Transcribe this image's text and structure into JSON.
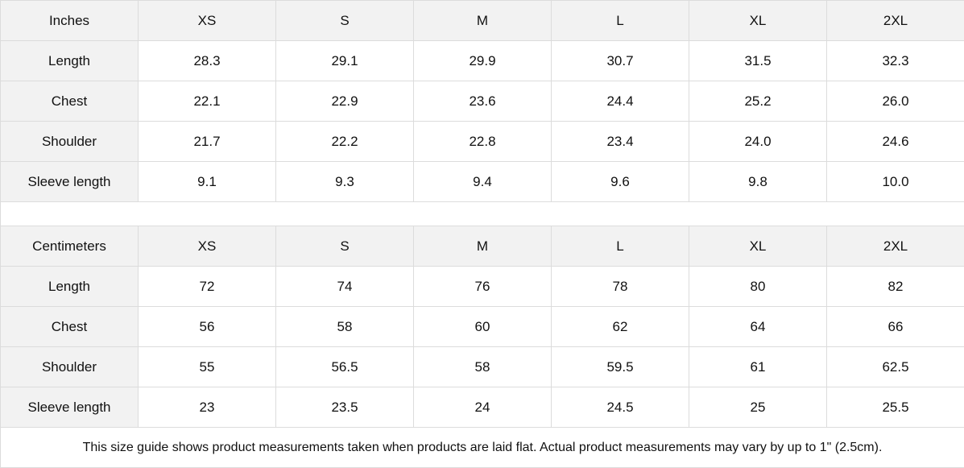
{
  "inches": {
    "unit": "Inches",
    "sizes": [
      "XS",
      "S",
      "M",
      "L",
      "XL",
      "2XL"
    ],
    "rows": [
      {
        "label": "Length",
        "values": [
          "28.3",
          "29.1",
          "29.9",
          "30.7",
          "31.5",
          "32.3"
        ]
      },
      {
        "label": "Chest",
        "values": [
          "22.1",
          "22.9",
          "23.6",
          "24.4",
          "25.2",
          "26.0"
        ]
      },
      {
        "label": "Shoulder",
        "values": [
          "21.7",
          "22.2",
          "22.8",
          "23.4",
          "24.0",
          "24.6"
        ]
      },
      {
        "label": "Sleeve length",
        "values": [
          "9.1",
          "9.3",
          "9.4",
          "9.6",
          "9.8",
          "10.0"
        ]
      }
    ]
  },
  "centimeters": {
    "unit": "Centimeters",
    "sizes": [
      "XS",
      "S",
      "M",
      "L",
      "XL",
      "2XL"
    ],
    "rows": [
      {
        "label": "Length",
        "values": [
          "72",
          "74",
          "76",
          "78",
          "80",
          "82"
        ]
      },
      {
        "label": "Chest",
        "values": [
          "56",
          "58",
          "60",
          "62",
          "64",
          "66"
        ]
      },
      {
        "label": "Shoulder",
        "values": [
          "55",
          "56.5",
          "58",
          "59.5",
          "61",
          "62.5"
        ]
      },
      {
        "label": "Sleeve length",
        "values": [
          "23",
          "23.5",
          "24",
          "24.5",
          "25",
          "25.5"
        ]
      }
    ]
  },
  "footnote": "This size guide shows product measurements taken when products are laid flat.  Actual product measurements may vary by up to 1\" (2.5cm).",
  "colors": {
    "header_bg": "#f2f2f2",
    "border": "#dcdcdc"
  }
}
